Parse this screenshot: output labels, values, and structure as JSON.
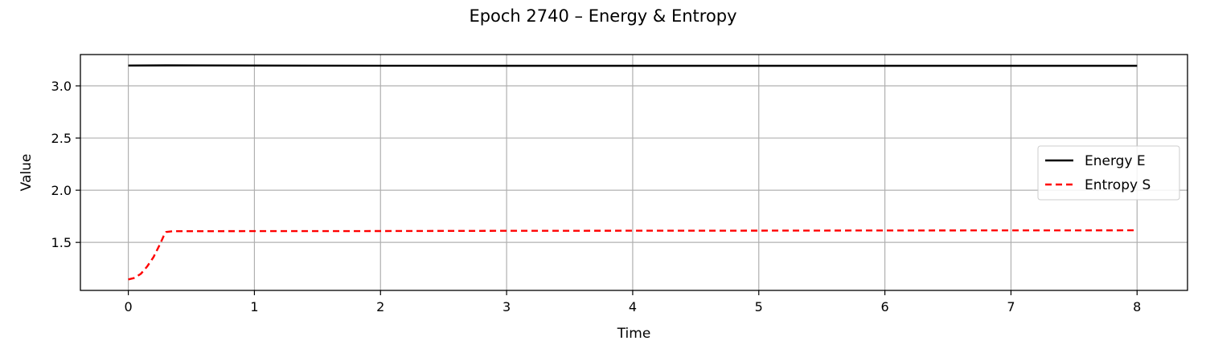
{
  "chart_data": {
    "type": "line",
    "title": "Epoch 2740 – Energy & Entropy",
    "xlabel": "Time",
    "ylabel": "Value",
    "xlim": [
      -0.38,
      8.4
    ],
    "ylim": [
      1.04,
      3.3
    ],
    "xticks": [
      0,
      1,
      2,
      3,
      4,
      5,
      6,
      7,
      8
    ],
    "yticks": [
      1.5,
      2.0,
      2.5,
      3.0
    ],
    "ytick_labels": [
      "1.5",
      "2.0",
      "2.5",
      "3.0"
    ],
    "grid": true,
    "legend_position": "right",
    "series": [
      {
        "name": "Energy E",
        "color": "#000000",
        "style": "solid",
        "x": [
          0.0,
          0.3,
          1.0,
          2.0,
          3.0,
          4.0,
          5.0,
          6.0,
          7.0,
          8.0
        ],
        "y": [
          3.195,
          3.196,
          3.195,
          3.193,
          3.192,
          3.192,
          3.192,
          3.192,
          3.192,
          3.192
        ]
      },
      {
        "name": "Entropy S",
        "color": "#ff0000",
        "style": "dashed",
        "x": [
          0.0,
          0.05,
          0.1,
          0.15,
          0.2,
          0.25,
          0.28,
          0.3,
          0.35,
          1.0,
          2.0,
          3.0,
          4.0,
          5.0,
          6.0,
          7.0,
          8.0
        ],
        "y": [
          1.145,
          1.16,
          1.2,
          1.27,
          1.36,
          1.48,
          1.56,
          1.6,
          1.607,
          1.608,
          1.609,
          1.611,
          1.612,
          1.613,
          1.614,
          1.615,
          1.616
        ]
      }
    ]
  }
}
